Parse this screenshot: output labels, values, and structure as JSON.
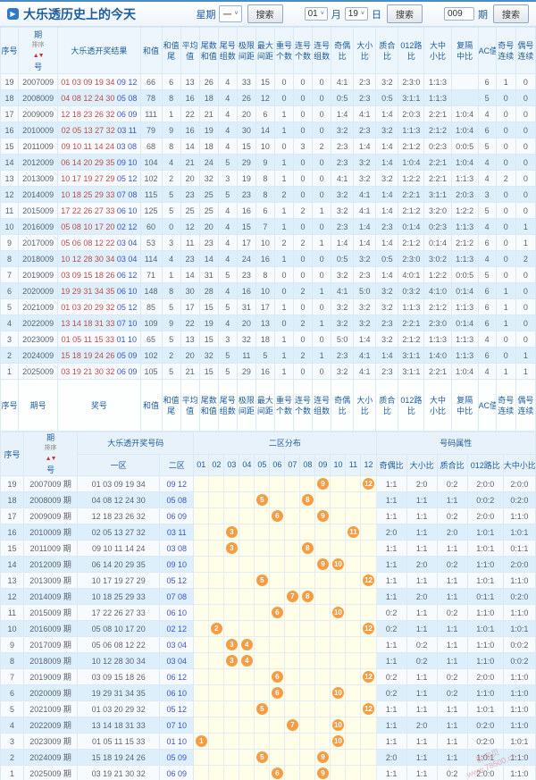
{
  "title": "大乐透历史上的今天",
  "title_icon": "▶",
  "controls": {
    "week_label": "星期",
    "week_value": "一",
    "month_value": "01",
    "month_label": "月",
    "day_value": "19",
    "day_label": "日",
    "issue_value": "009",
    "issue_label": "期",
    "search_label": "搜索",
    "caret": "˅"
  },
  "colors": {
    "front_number": "#c24a4a",
    "back_number": "#3c55c8",
    "ball": "#f59d44",
    "header_text": "#1d5d9e",
    "row_stripe": "#dceffa",
    "dist_bg": "#fffee8"
  },
  "sort": {
    "label": "排序",
    "arrows": "▲▼"
  },
  "table1": {
    "columns": [
      [
        "序号",
        ""
      ],
      [
        "期",
        "号"
      ],
      [
        "大乐透开奖结果",
        ""
      ],
      [
        "和值",
        ""
      ],
      [
        "和值",
        "尾"
      ],
      [
        "平均",
        "值"
      ],
      [
        "尾数",
        "和值"
      ],
      [
        "尾号",
        "组数"
      ],
      [
        "极限",
        "间距"
      ],
      [
        "最大",
        "间距"
      ],
      [
        "重号",
        "个数"
      ],
      [
        "连号",
        "个数"
      ],
      [
        "连号",
        "组数"
      ],
      [
        "奇偶",
        "比"
      ],
      [
        "大小",
        "比"
      ],
      [
        "质合",
        "比"
      ],
      [
        "012路",
        "比"
      ],
      [
        "大中",
        "小比"
      ],
      [
        "复隔",
        "中比"
      ],
      [
        "AC值",
        ""
      ],
      [
        "奇号",
        "连续"
      ],
      [
        "偶号",
        "连续"
      ]
    ],
    "footer_columns": [
      [
        "序号",
        ""
      ],
      [
        "期号",
        ""
      ],
      [
        "奖号",
        ""
      ],
      [
        "和值",
        ""
      ],
      [
        "和值",
        "尾"
      ],
      [
        "平均",
        "值"
      ],
      [
        "尾数",
        "和值"
      ],
      [
        "尾号",
        "组数"
      ],
      [
        "极限",
        "间距"
      ],
      [
        "最大",
        "间距"
      ],
      [
        "重号",
        "个数"
      ],
      [
        "连号",
        "个数"
      ],
      [
        "连号",
        "组数"
      ],
      [
        "奇偶",
        "比"
      ],
      [
        "大小",
        "比"
      ],
      [
        "质合",
        "比"
      ],
      [
        "012路",
        "比"
      ],
      [
        "大中",
        "小比"
      ],
      [
        "复隔",
        "中比"
      ],
      [
        "AC值",
        ""
      ],
      [
        "奇号",
        "连续"
      ],
      [
        "偶号",
        "连续"
      ]
    ],
    "rows": [
      {
        "seq": "19",
        "period": "2007009",
        "front": "01 03 09 19 34",
        "back": "09 12",
        "vals": [
          "66",
          "6",
          "13",
          "26",
          "4",
          "33",
          "15",
          "0",
          "0",
          "0",
          "4:1",
          "2:3",
          "3:2",
          "2:3:0",
          "1:1:3",
          "",
          "6",
          "1",
          "0"
        ]
      },
      {
        "seq": "18",
        "period": "2008009",
        "front": "04 08 12 24 30",
        "back": "05 08",
        "vals": [
          "78",
          "8",
          "16",
          "18",
          "4",
          "26",
          "12",
          "0",
          "0",
          "0",
          "0:5",
          "2:3",
          "0:5",
          "3:1:1",
          "1:1:3",
          "",
          "5",
          "0",
          "0"
        ]
      },
      {
        "seq": "17",
        "period": "2009009",
        "front": "12 18 23 26 32",
        "back": "06 09",
        "vals": [
          "111",
          "1",
          "22",
          "21",
          "4",
          "20",
          "6",
          "1",
          "0",
          "0",
          "1:4",
          "4:1",
          "1:4",
          "2:0:3",
          "2:2:1",
          "1:0:4",
          "4",
          "0",
          "0"
        ]
      },
      {
        "seq": "16",
        "period": "2010009",
        "front": "02 05 13 27 32",
        "back": "03 11",
        "vals": [
          "79",
          "9",
          "16",
          "19",
          "4",
          "30",
          "14",
          "1",
          "0",
          "0",
          "3:2",
          "2:3",
          "3:2",
          "1:1:3",
          "2:1:2",
          "1:0:4",
          "6",
          "0",
          "0"
        ]
      },
      {
        "seq": "15",
        "period": "2011009",
        "front": "09 10 11 14 24",
        "back": "03 08",
        "vals": [
          "68",
          "8",
          "14",
          "18",
          "4",
          "15",
          "10",
          "0",
          "3",
          "2",
          "2:3",
          "1:4",
          "1:4",
          "2:1:2",
          "0:2:3",
          "0:0:5",
          "5",
          "0",
          "0"
        ]
      },
      {
        "seq": "14",
        "period": "2012009",
        "front": "06 14 20 29 35",
        "back": "09 10",
        "vals": [
          "104",
          "4",
          "21",
          "24",
          "5",
          "29",
          "9",
          "1",
          "0",
          "0",
          "2:3",
          "3:2",
          "1:4",
          "1:0:4",
          "2:2:1",
          "1:0:4",
          "4",
          "0",
          "0"
        ]
      },
      {
        "seq": "13",
        "period": "2013009",
        "front": "10 17 19 27 29",
        "back": "05 12",
        "vals": [
          "102",
          "2",
          "20",
          "32",
          "3",
          "19",
          "8",
          "1",
          "0",
          "0",
          "4:1",
          "3:2",
          "3:2",
          "1:2:2",
          "2:2:1",
          "1:1:3",
          "4",
          "2",
          "0"
        ]
      },
      {
        "seq": "12",
        "period": "2014009",
        "front": "10 18 25 29 33",
        "back": "07 08",
        "vals": [
          "115",
          "5",
          "23",
          "25",
          "5",
          "23",
          "8",
          "2",
          "0",
          "0",
          "3:2",
          "4:1",
          "1:4",
          "2:2:1",
          "3:1:1",
          "2:0:3",
          "3",
          "0",
          "0"
        ]
      },
      {
        "seq": "11",
        "period": "2015009",
        "front": "17 22 26 27 33",
        "back": "06 10",
        "vals": [
          "125",
          "5",
          "25",
          "25",
          "4",
          "16",
          "6",
          "1",
          "2",
          "1",
          "3:2",
          "4:1",
          "1:4",
          "2:1:2",
          "3:2:0",
          "1:2:2",
          "5",
          "0",
          "0"
        ]
      },
      {
        "seq": "10",
        "period": "2016009",
        "front": "05 08 10 17 20",
        "back": "02 12",
        "vals": [
          "60",
          "0",
          "12",
          "20",
          "4",
          "15",
          "7",
          "1",
          "0",
          "0",
          "2:3",
          "1:4",
          "2:3",
          "0:1:4",
          "0:2:3",
          "1:1:3",
          "4",
          "0",
          "1"
        ]
      },
      {
        "seq": "9",
        "period": "2017009",
        "front": "05 06 08 12 22",
        "back": "03 04",
        "vals": [
          "53",
          "3",
          "11",
          "23",
          "4",
          "17",
          "10",
          "2",
          "2",
          "1",
          "1:4",
          "1:4",
          "1:4",
          "2:1:2",
          "0:1:4",
          "2:1:2",
          "6",
          "0",
          "1"
        ]
      },
      {
        "seq": "8",
        "period": "2018009",
        "front": "10 12 28 30 34",
        "back": "03 04",
        "vals": [
          "114",
          "4",
          "23",
          "14",
          "4",
          "24",
          "16",
          "1",
          "0",
          "0",
          "0:5",
          "3:2",
          "0:5",
          "2:3:0",
          "3:0:2",
          "1:1:3",
          "4",
          "0",
          "2"
        ]
      },
      {
        "seq": "7",
        "period": "2019009",
        "front": "03 09 15 18 26",
        "back": "06 12",
        "vals": [
          "71",
          "1",
          "14",
          "31",
          "5",
          "23",
          "8",
          "0",
          "0",
          "0",
          "3:2",
          "2:3",
          "1:4",
          "4:0:1",
          "1:2:2",
          "0:0:5",
          "5",
          "0",
          "0"
        ]
      },
      {
        "seq": "6",
        "period": "2020009",
        "front": "19 29 31 34 35",
        "back": "06 10",
        "vals": [
          "148",
          "8",
          "30",
          "28",
          "4",
          "16",
          "10",
          "0",
          "2",
          "1",
          "4:1",
          "5:0",
          "3:2",
          "0:3:2",
          "4:1:0",
          "0:1:4",
          "6",
          "1",
          "0"
        ]
      },
      {
        "seq": "5",
        "period": "2021009",
        "front": "01 03 20 29 32",
        "back": "05 12",
        "vals": [
          "85",
          "5",
          "17",
          "15",
          "5",
          "31",
          "17",
          "1",
          "0",
          "0",
          "3:2",
          "3:2",
          "3:2",
          "1:1:3",
          "2:1:2",
          "1:1:3",
          "6",
          "1",
          "0"
        ]
      },
      {
        "seq": "4",
        "period": "2022009",
        "front": "13 14 18 31 33",
        "back": "07 10",
        "vals": [
          "109",
          "9",
          "22",
          "19",
          "4",
          "20",
          "13",
          "0",
          "2",
          "1",
          "3:2",
          "3:2",
          "2:3",
          "2:2:1",
          "2:3:0",
          "0:1:4",
          "6",
          "1",
          "0"
        ]
      },
      {
        "seq": "3",
        "period": "2023009",
        "front": "01 05 11 15 33",
        "back": "01 10",
        "vals": [
          "65",
          "5",
          "13",
          "15",
          "3",
          "32",
          "18",
          "1",
          "0",
          "0",
          "5:0",
          "1:4",
          "3:2",
          "2:1:2",
          "1:1:3",
          "1:1:3",
          "4",
          "0",
          "0"
        ]
      },
      {
        "seq": "2",
        "period": "2024009",
        "front": "15 18 19 24 26",
        "back": "05 09",
        "vals": [
          "102",
          "2",
          "20",
          "32",
          "5",
          "11",
          "5",
          "1",
          "2",
          "1",
          "2:3",
          "4:1",
          "1:4",
          "3:1:1",
          "1:4:0",
          "1:1:3",
          "6",
          "0",
          "1"
        ]
      },
      {
        "seq": "1",
        "period": "2025009",
        "front": "03 19 21 30 32",
        "back": "06 09",
        "vals": [
          "105",
          "5",
          "21",
          "15",
          "5",
          "29",
          "16",
          "1",
          "0",
          "0",
          "3:2",
          "4:1",
          "2:3",
          "3:1:1",
          "2:2:1",
          "1:0:4",
          "4",
          "1",
          "1"
        ]
      }
    ]
  },
  "table2": {
    "group_headers": {
      "seq": "序号",
      "period_l1": "期",
      "period_l2": "号",
      "result": "大乐透开奖号码",
      "dist": "二区分布",
      "attrs": "号码属性"
    },
    "sub_headers": {
      "zone1": "一区",
      "zone2": "二区",
      "cells": [
        "01",
        "02",
        "03",
        "04",
        "05",
        "06",
        "07",
        "08",
        "09",
        "10",
        "11",
        "12"
      ],
      "attrs": [
        "奇偶比",
        "大小比",
        "质合比",
        "012路比",
        "大中小比"
      ]
    },
    "rows": [
      {
        "seq": "19",
        "period": "2007009 期",
        "zone1": "01 03 09 19 34",
        "zone2": "09 12",
        "balls": [
          9,
          12
        ],
        "attrs": [
          "1:1",
          "2:0",
          "0:2",
          "2:0:0",
          "2:0:0"
        ]
      },
      {
        "seq": "18",
        "period": "2008009 期",
        "zone1": "04 08 12 24 30",
        "zone2": "05 08",
        "balls": [
          5,
          8
        ],
        "attrs": [
          "1:1",
          "1:1",
          "1:1",
          "0:0:2",
          "0:2:0"
        ]
      },
      {
        "seq": "17",
        "period": "2009009 期",
        "zone1": "12 18 23 26 32",
        "zone2": "06 09",
        "balls": [
          6,
          9
        ],
        "attrs": [
          "1:1",
          "1:1",
          "0:2",
          "2:0:0",
          "1:1:0"
        ]
      },
      {
        "seq": "16",
        "period": "2010009 期",
        "zone1": "02 05 13 27 32",
        "zone2": "03 11",
        "balls": [
          3,
          11
        ],
        "attrs": [
          "2:0",
          "1:1",
          "2:0",
          "1:0:1",
          "1:0:1"
        ]
      },
      {
        "seq": "15",
        "period": "2011009 期",
        "zone1": "09 10 11 14 24",
        "zone2": "03 08",
        "balls": [
          3,
          8
        ],
        "attrs": [
          "1:1",
          "1:1",
          "1:1",
          "1:0:1",
          "0:1:1"
        ]
      },
      {
        "seq": "14",
        "period": "2012009 期",
        "zone1": "06 14 20 29 35",
        "zone2": "09 10",
        "balls": [
          9,
          10
        ],
        "attrs": [
          "1:1",
          "2:0",
          "0:2",
          "1:1:0",
          "2:0:0"
        ]
      },
      {
        "seq": "13",
        "period": "2013009 期",
        "zone1": "10 17 19 27 29",
        "zone2": "05 12",
        "balls": [
          5,
          12
        ],
        "attrs": [
          "1:1",
          "1:1",
          "1:1",
          "1:0:1",
          "1:1:0"
        ]
      },
      {
        "seq": "12",
        "period": "2014009 期",
        "zone1": "10 18 25 29 33",
        "zone2": "07 08",
        "balls": [
          7,
          8
        ],
        "attrs": [
          "1:1",
          "2:0",
          "1:1",
          "0:1:1",
          "0:2:0"
        ]
      },
      {
        "seq": "11",
        "period": "2015009 期",
        "zone1": "17 22 26 27 33",
        "zone2": "06 10",
        "balls": [
          6,
          10
        ],
        "attrs": [
          "0:2",
          "1:1",
          "0:2",
          "1:1:0",
          "1:1:0"
        ]
      },
      {
        "seq": "10",
        "period": "2016009 期",
        "zone1": "05 08 10 17 20",
        "zone2": "02 12",
        "balls": [
          2,
          12
        ],
        "attrs": [
          "0:2",
          "1:1",
          "1:1",
          "1:0:1",
          "1:0:1"
        ]
      },
      {
        "seq": "9",
        "period": "2017009 期",
        "zone1": "05 06 08 12 22",
        "zone2": "03 04",
        "balls": [
          3,
          4
        ],
        "attrs": [
          "1:1",
          "0:2",
          "1:1",
          "1:1:0",
          "0:0:2"
        ]
      },
      {
        "seq": "8",
        "period": "2018009 期",
        "zone1": "10 12 28 30 34",
        "zone2": "03 04",
        "balls": [
          3,
          4
        ],
        "attrs": [
          "1:1",
          "0:2",
          "1:1",
          "1:1:0",
          "0:0:2"
        ]
      },
      {
        "seq": "7",
        "period": "2019009 期",
        "zone1": "03 09 15 18 26",
        "zone2": "06 12",
        "balls": [
          6,
          12
        ],
        "attrs": [
          "0:2",
          "1:1",
          "0:2",
          "2:0:0",
          "1:1:0"
        ]
      },
      {
        "seq": "6",
        "period": "2020009 期",
        "zone1": "19 29 31 34 35",
        "zone2": "06 10",
        "balls": [
          6,
          10
        ],
        "attrs": [
          "0:2",
          "1:1",
          "0:2",
          "1:1:0",
          "1:1:0"
        ]
      },
      {
        "seq": "5",
        "period": "2021009 期",
        "zone1": "01 03 20 29 32",
        "zone2": "05 12",
        "balls": [
          5,
          12
        ],
        "attrs": [
          "1:1",
          "1:1",
          "1:1",
          "1:0:1",
          "1:1:0"
        ]
      },
      {
        "seq": "4",
        "period": "2022009 期",
        "zone1": "13 14 18 31 33",
        "zone2": "07 10",
        "balls": [
          7,
          10
        ],
        "attrs": [
          "1:1",
          "2:0",
          "1:1",
          "0:2:0",
          "1:1:0"
        ]
      },
      {
        "seq": "3",
        "period": "2023009 期",
        "zone1": "01 05 11 15 33",
        "zone2": "01 10",
        "balls": [
          1,
          10
        ],
        "attrs": [
          "1:1",
          "1:1",
          "1:1",
          "0:2:0",
          "1:0:1"
        ]
      },
      {
        "seq": "2",
        "period": "2024009 期",
        "zone1": "15 18 19 24 26",
        "zone2": "05 09",
        "balls": [
          5,
          9
        ],
        "attrs": [
          "2:0",
          "1:1",
          "1:1",
          "1:0:1",
          "1:1:0"
        ]
      },
      {
        "seq": "1",
        "period": "2025009 期",
        "zone1": "03 19 21 30 32",
        "zone2": "06 09",
        "balls": [
          6,
          9
        ],
        "attrs": [
          "1:1",
          "1:1",
          "0:2",
          "2:0:0",
          "1:1:0"
        ]
      }
    ]
  },
  "watermark": {
    "line1": "彩宝贝",
    "line2": "www.78500.cn"
  }
}
